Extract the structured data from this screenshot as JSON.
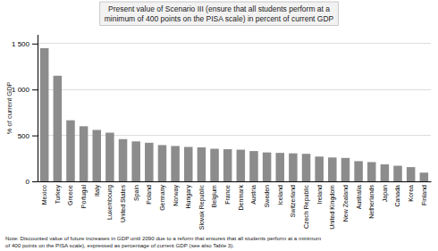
{
  "chart_data": {
    "type": "bar",
    "title": "Present value of Scenario III (ensure that all students perform at a\nminimum of 400 points on the PISA scale) in percent of current GDP",
    "note": "Note: Discounted value of future increases in GDP until 2090 due to a reform that ensures that all students perform at a minimum\nof 400 points on the PISA scale), expressed as percentage of current GDP (see also Table 3).",
    "ylabel": "% of current GDP",
    "categories": [
      "Mexico",
      "Turkey",
      "Greece",
      "Portugal",
      "Italy",
      "Luxembourg",
      "United States",
      "Spain",
      "Poland",
      "Germany",
      "Norway",
      "Hungary",
      "Slovak Republic",
      "Belgium",
      "France",
      "Denmark",
      "Austria",
      "Sweden",
      "Iceland",
      "Switzerland",
      "Czech Republic",
      "Ireland",
      "United Kingdom",
      "New Zealand",
      "Australia",
      "Netherlands",
      "Japan",
      "Canada",
      "Korea",
      "Finland"
    ],
    "values": [
      1450,
      1150,
      665,
      600,
      560,
      530,
      460,
      435,
      420,
      395,
      385,
      375,
      370,
      355,
      350,
      345,
      330,
      315,
      310,
      305,
      300,
      270,
      260,
      255,
      220,
      210,
      185,
      170,
      155,
      95
    ],
    "color": "#8c8c8c",
    "ylim": [
      0,
      1600
    ],
    "yticks": [
      0,
      500,
      {
        "value": 1000,
        "label": "1 000"
      },
      {
        "value": 1500,
        "label": "1 500"
      }
    ],
    "grid": true
  }
}
